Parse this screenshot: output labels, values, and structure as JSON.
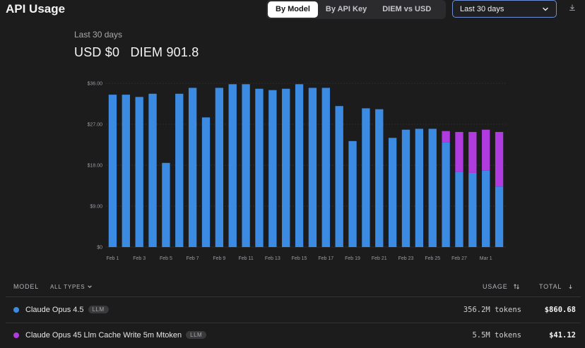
{
  "header": {
    "title": "API Usage",
    "tabs": [
      {
        "label": "By Model",
        "active": true
      },
      {
        "label": "By API Key",
        "active": false
      },
      {
        "label": "DIEM vs USD",
        "active": false
      }
    ],
    "range_select": "Last 30 days",
    "download_icon": "download-icon"
  },
  "summary": {
    "period": "Last 30 days",
    "usd": "USD $0",
    "diem": "DIEM 901.8"
  },
  "chart_data": {
    "type": "bar",
    "stacked": true,
    "y_tick_labels": [
      "$0",
      "$9.00",
      "$18.00",
      "$27.00",
      "$36.00"
    ],
    "ylim": [
      0,
      36
    ],
    "x_tick_labels": [
      "Feb 1",
      "Feb 3",
      "Feb 5",
      "Feb 7",
      "Feb 9",
      "Feb 11",
      "Feb 13",
      "Feb 15",
      "Feb 17",
      "Feb 19",
      "Feb 21",
      "Feb 23",
      "Feb 25",
      "Feb 27",
      "Mar 1"
    ],
    "categories": [
      "Feb 1",
      "Feb 2",
      "Feb 3",
      "Feb 4",
      "Feb 5",
      "Feb 6",
      "Feb 7",
      "Feb 8",
      "Feb 9",
      "Feb 10",
      "Feb 11",
      "Feb 12",
      "Feb 13",
      "Feb 14",
      "Feb 15",
      "Feb 16",
      "Feb 17",
      "Feb 18",
      "Feb 19",
      "Feb 20",
      "Feb 21",
      "Feb 22",
      "Feb 23",
      "Feb 24",
      "Feb 25",
      "Feb 26",
      "Feb 27",
      "Feb 28",
      "Mar 1",
      "Mar 2"
    ],
    "series": [
      {
        "color": "#3b8be3",
        "values": [
          33.5,
          33.5,
          33.0,
          33.7,
          18.5,
          33.7,
          35.0,
          28.5,
          35.0,
          35.8,
          35.8,
          34.8,
          34.5,
          34.8,
          35.8,
          35.0,
          35.0,
          31.0,
          23.3,
          30.5,
          30.3,
          24.0,
          25.8,
          26.0,
          26.0,
          23.0,
          16.5,
          16.3,
          16.8,
          13.3
        ]
      },
      {
        "color": "#b03ce0",
        "values": [
          0,
          0,
          0,
          0,
          0,
          0,
          0,
          0,
          0,
          0,
          0,
          0,
          0,
          0,
          0,
          0,
          0,
          0,
          0,
          0,
          0,
          0,
          0,
          0,
          0,
          2.5,
          8.8,
          9.0,
          9.0,
          12.0
        ]
      }
    ],
    "grid": true
  },
  "table": {
    "headers": {
      "model": "MODEL",
      "filter": "ALL TYPES",
      "usage": "USAGE",
      "total": "TOTAL"
    },
    "rows": [
      {
        "name": "Claude Opus 4.5",
        "badge": "LLM",
        "usage": "356.2M tokens",
        "total": "$860.68",
        "color": "#3b8be3"
      },
      {
        "name": "Claude Opus 45 Llm Cache Write 5m Mtoken",
        "badge": "LLM",
        "usage": "5.5M tokens",
        "total": "$41.12",
        "color": "#b03ce0"
      }
    ]
  }
}
